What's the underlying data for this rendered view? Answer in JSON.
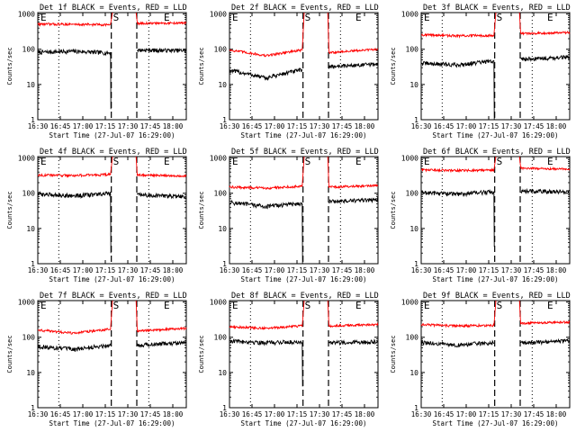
{
  "figure": {
    "yticks": [
      "1",
      "10",
      "100",
      "1000"
    ],
    "xticks": [
      "16:30",
      "16:45",
      "17:00",
      "17:15",
      "17:30",
      "17:45",
      "18:00"
    ],
    "ylabel": "Counts/sec",
    "xlabel": "Start Time (27-Jul-07 16:29:00)",
    "markers": [
      "E",
      "S",
      "E"
    ],
    "colors": {
      "events": "#000000",
      "lld": "#ff0000",
      "axis": "#000000"
    }
  },
  "chart_data": [
    {
      "type": "line",
      "title": "Det 1f BLACK = Events, RED = LLD",
      "xlabel": "Start Time (27-Jul-07 16:29:00)",
      "ylabel": "Counts/sec",
      "yscale": "log",
      "ylim": [
        1,
        1100
      ],
      "xlim": [
        "16:30",
        "18:09"
      ],
      "series": [
        {
          "color": "black",
          "pre": [
            82,
            88,
            78
          ],
          "post": [
            95,
            92
          ],
          "dip": 2
        },
        {
          "color": "red",
          "pre": [
            520,
            510,
            500
          ],
          "post": [
            540,
            560
          ],
          "dip": null
        }
      ]
    },
    {
      "type": "line",
      "title": "Det 2f BLACK = Events, RED = LLD",
      "xlabel": "Start Time (27-Jul-07 16:29:00)",
      "ylabel": "Counts/sec",
      "yscale": "log",
      "ylim": [
        1,
        1100
      ],
      "xlim": [
        "16:30",
        "18:09"
      ],
      "series": [
        {
          "color": "black",
          "pre": [
            25,
            15,
            26
          ],
          "post": [
            32,
            38
          ],
          "dip": null
        },
        {
          "color": "red",
          "pre": [
            95,
            65,
            95
          ],
          "post": [
            80,
            100
          ],
          "dip": null
        }
      ]
    },
    {
      "type": "line",
      "title": "Det 3f BLACK = Events, RED = LLD",
      "xlabel": "Start Time (27-Jul-07 16:29:00)",
      "ylabel": "Counts/sec",
      "yscale": "log",
      "ylim": [
        1,
        1100
      ],
      "xlim": [
        "16:30",
        "18:09"
      ],
      "series": [
        {
          "color": "black",
          "pre": [
            40,
            36,
            46
          ],
          "post": [
            52,
            60
          ],
          "dip": 1
        },
        {
          "color": "red",
          "pre": [
            260,
            240,
            250
          ],
          "post": [
            280,
            300
          ],
          "dip": null
        }
      ]
    },
    {
      "type": "line",
      "title": "Det 4f BLACK = Events, RED = LLD",
      "xlabel": "Start Time (27-Jul-07 16:29:00)",
      "ylabel": "Counts/sec",
      "yscale": "log",
      "ylim": [
        1,
        1100
      ],
      "xlim": [
        "16:30",
        "18:09"
      ],
      "series": [
        {
          "color": "black",
          "pre": [
            95,
            85,
            98
          ],
          "post": [
            90,
            80
          ],
          "dip": 2
        },
        {
          "color": "red",
          "pre": [
            330,
            320,
            340
          ],
          "post": [
            330,
            310
          ],
          "dip": null
        }
      ]
    },
    {
      "type": "line",
      "title": "Det 5f BLACK = Events, RED = LLD",
      "xlabel": "Start Time (27-Jul-07 16:29:00)",
      "ylabel": "Counts/sec",
      "yscale": "log",
      "ylim": [
        1,
        1100
      ],
      "xlim": [
        "16:30",
        "18:09"
      ],
      "series": [
        {
          "color": "black",
          "pre": [
            55,
            42,
            52
          ],
          "post": [
            58,
            65
          ],
          "dip": 1
        },
        {
          "color": "red",
          "pre": [
            150,
            140,
            160
          ],
          "post": [
            150,
            165
          ],
          "dip": null
        }
      ]
    },
    {
      "type": "line",
      "title": "Det 6f BLACK = Events, RED = LLD",
      "xlabel": "Start Time (27-Jul-07 16:29:00)",
      "ylabel": "Counts/sec",
      "yscale": "log",
      "ylim": [
        1,
        1100
      ],
      "xlim": [
        "16:30",
        "18:09"
      ],
      "series": [
        {
          "color": "black",
          "pre": [
            105,
            95,
            110
          ],
          "post": [
            115,
            110
          ],
          "dip": 3
        },
        {
          "color": "red",
          "pre": [
            460,
            440,
            460
          ],
          "post": [
            520,
            480
          ],
          "dip": null
        }
      ]
    },
    {
      "type": "line",
      "title": "Det 7f BLACK = Events, RED = LLD",
      "xlabel": "Start Time (27-Jul-07 16:29:00)",
      "ylabel": "Counts/sec",
      "yscale": "log",
      "ylim": [
        1,
        1100
      ],
      "xlim": [
        "16:30",
        "18:09"
      ],
      "series": [
        {
          "color": "black",
          "pre": [
            55,
            45,
            60
          ],
          "post": [
            60,
            70
          ],
          "dip": null
        },
        {
          "color": "red",
          "pre": [
            160,
            130,
            170
          ],
          "post": [
            150,
            180
          ],
          "dip": null
        }
      ]
    },
    {
      "type": "line",
      "title": "Det 8f BLACK = Events, RED = LLD",
      "xlabel": "Start Time (27-Jul-07 16:29:00)",
      "ylabel": "Counts/sec",
      "yscale": "log",
      "ylim": [
        1,
        1100
      ],
      "xlim": [
        "16:30",
        "18:09"
      ],
      "series": [
        {
          "color": "black",
          "pre": [
            80,
            70,
            75
          ],
          "post": [
            70,
            75
          ],
          "dip": 4
        },
        {
          "color": "red",
          "pre": [
            200,
            180,
            210
          ],
          "post": [
            210,
            230
          ],
          "dip": null
        }
      ]
    },
    {
      "type": "line",
      "title": "Det 9f BLACK = Events, RED = LLD",
      "xlabel": "Start Time (27-Jul-07 16:29:00)",
      "ylabel": "Counts/sec",
      "yscale": "log",
      "ylim": [
        1,
        1100
      ],
      "xlim": [
        "16:30",
        "18:09"
      ],
      "series": [
        {
          "color": "black",
          "pre": [
            70,
            60,
            70
          ],
          "post": [
            70,
            78
          ],
          "dip": null
        },
        {
          "color": "red",
          "pre": [
            230,
            210,
            220
          ],
          "post": [
            250,
            270
          ],
          "dip": null
        }
      ]
    }
  ]
}
